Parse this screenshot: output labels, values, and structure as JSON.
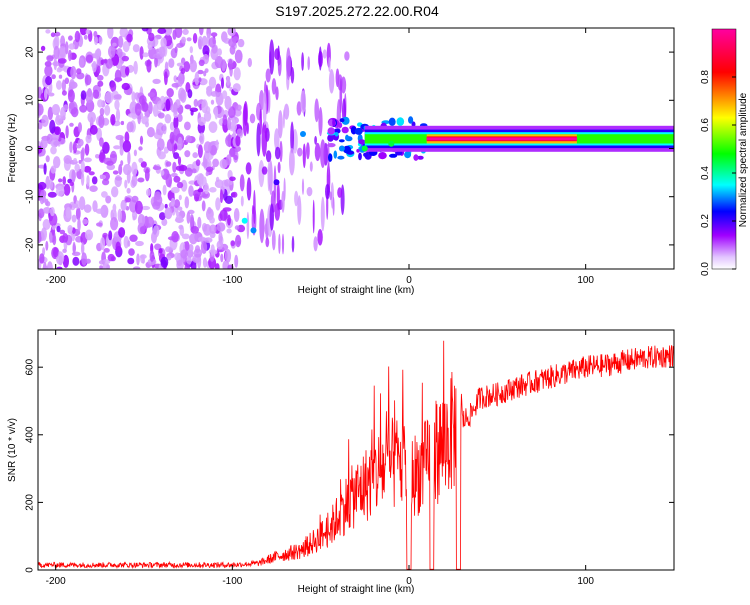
{
  "title": "S197.2025.272.22.00.R04",
  "chart_data": [
    {
      "type": "heatmap",
      "title": "S197.2025.272.22.00.R04",
      "xlabel": "Height of straight line (km)",
      "ylabel": "Frequency (Hz)",
      "xlim": [
        -210,
        150
      ],
      "ylim": [
        -25,
        25
      ],
      "xticks": [
        "-200",
        "-100",
        "0",
        "100"
      ],
      "yticks": [
        "20",
        "10",
        "0",
        "-10",
        "-20"
      ],
      "colorbar": {
        "label": "Normalized spectral amplitude",
        "range": [
          0,
          1
        ],
        "ticks": [
          "0.0",
          "0.2",
          "0.4",
          "0.6",
          "0.8"
        ],
        "colors": [
          "#ffffff",
          "#a000ff",
          "#0000ff",
          "#00ffff",
          "#00ff00",
          "#ffff00",
          "#ff0000",
          "#ff00a0"
        ]
      },
      "features": {
        "noise_region_km": [
          -210,
          -95
        ],
        "carrier_start_km": -40,
        "carrier_frequency_hz": 2,
        "strong_carrier_range_km": [
          10,
          95
        ],
        "carrier_peak_amplitude": 1.0,
        "spike_features": [
          {
            "x": -93,
            "freq": -15,
            "amp": 0.35
          },
          {
            "x": -88,
            "freq": -17,
            "amp": 0.3
          },
          {
            "x": -75,
            "freq": -7,
            "amp": 0.2
          },
          {
            "x": -60,
            "freq": 3,
            "amp": 0.3
          },
          {
            "x": -38,
            "freq": 0,
            "amp": 0.3
          },
          {
            "x": -25,
            "freq": 0,
            "amp": 0.45
          },
          {
            "x": -10,
            "freq": 1,
            "amp": 0.45
          }
        ]
      }
    },
    {
      "type": "line",
      "xlabel": "Height of straight line (km)",
      "ylabel": "SNR (10 * v/v)",
      "xlim": [
        -210,
        150
      ],
      "ylim": [
        0,
        710
      ],
      "xticks": [
        "-200",
        "-100",
        "0",
        "100"
      ],
      "yticks": [
        "0",
        "200",
        "400",
        "600"
      ],
      "color": "#ff0000",
      "series": [
        {
          "name": "SNR",
          "x": [
            -210,
            -180,
            -150,
            -120,
            -100,
            -85,
            -75,
            -60,
            -45,
            -35,
            -25,
            -15,
            -5,
            0,
            10,
            20,
            30,
            35,
            40,
            50,
            60,
            70,
            80,
            90,
            100,
            110,
            120,
            130,
            140,
            150
          ],
          "values": [
            15,
            15,
            15,
            15,
            15,
            20,
            40,
            60,
            120,
            200,
            250,
            300,
            320,
            270,
            310,
            380,
            440,
            460,
            510,
            520,
            540,
            555,
            570,
            585,
            600,
            605,
            615,
            625,
            630,
            635
          ]
        }
      ],
      "dropouts_km": [
        0,
        13,
        28
      ]
    }
  ]
}
